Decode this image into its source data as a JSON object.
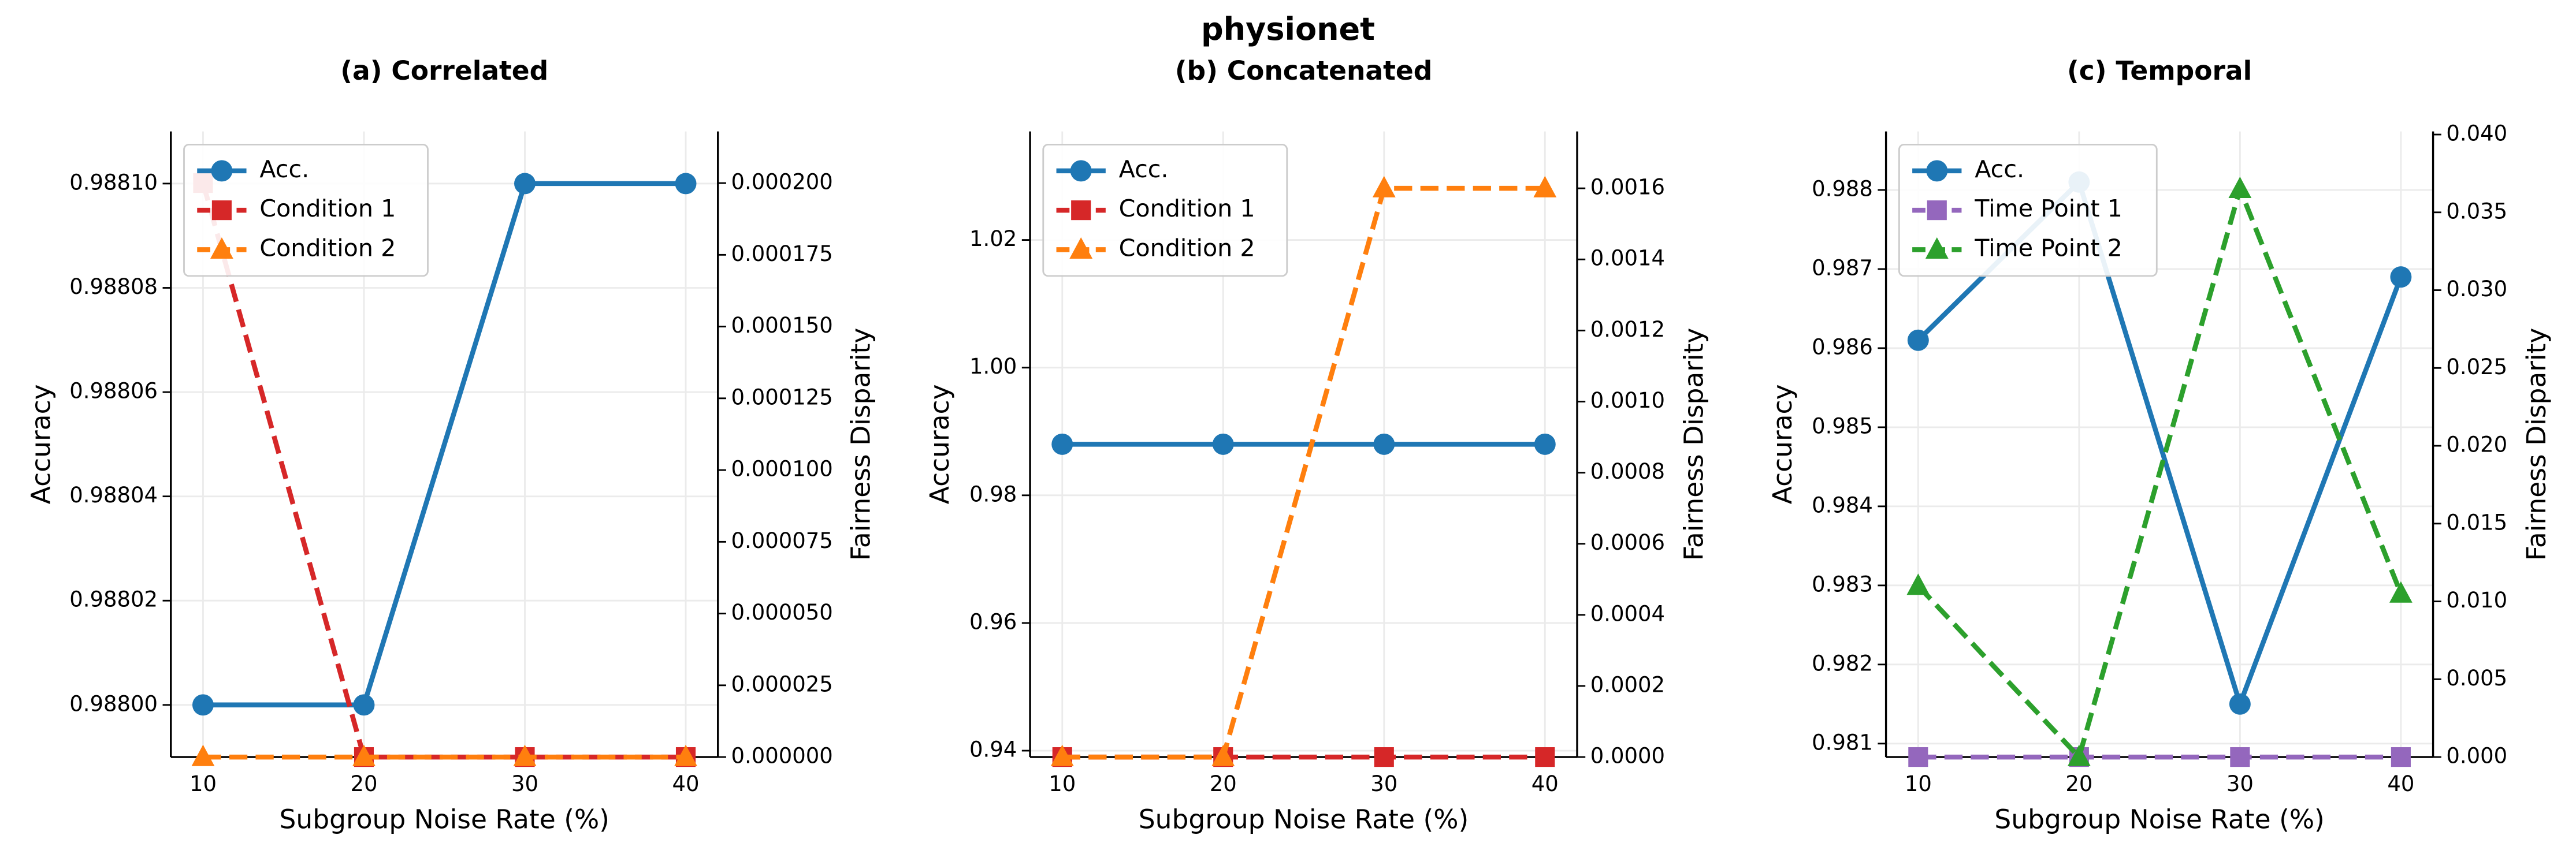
{
  "title": "physionet",
  "chart_data": [
    {
      "type": "line",
      "title": "(a) Correlated",
      "xlabel": "Subgroup Noise Rate (%)",
      "ylabel": "Accuracy",
      "y2label": "Fairness Disparity",
      "x": [
        10,
        20,
        30,
        40
      ],
      "xlim": [
        8,
        42
      ],
      "xticks": [
        10,
        20,
        30,
        40
      ],
      "ylim": [
        0.98799,
        0.98811
      ],
      "yticks": [
        {
          "value": 0.988,
          "label": "0.98800"
        },
        {
          "value": 0.98802,
          "label": "0.98802"
        },
        {
          "value": 0.98804,
          "label": "0.98804"
        },
        {
          "value": 0.98806,
          "label": "0.98806"
        },
        {
          "value": 0.98808,
          "label": "0.98808"
        },
        {
          "value": 0.9881,
          "label": "0.98810"
        }
      ],
      "y2lim": [
        0,
        0.000218
      ],
      "y2ticks": [
        {
          "value": 0,
          "label": "0.000000"
        },
        {
          "value": 2.5e-05,
          "label": "0.000025"
        },
        {
          "value": 5e-05,
          "label": "0.000050"
        },
        {
          "value": 7.5e-05,
          "label": "0.000075"
        },
        {
          "value": 0.0001,
          "label": "0.000100"
        },
        {
          "value": 0.000125,
          "label": "0.000125"
        },
        {
          "value": 0.00015,
          "label": "0.000150"
        },
        {
          "value": 0.000175,
          "label": "0.000175"
        },
        {
          "value": 0.0002,
          "label": "0.000200"
        }
      ],
      "grid": true,
      "legend": "upper left",
      "axis_color": "#1f77b4",
      "series": [
        {
          "name": "Acc.",
          "color": "#1f77b4",
          "marker": "circle",
          "linestyle": "solid",
          "values": [
            0.988,
            0.988,
            0.9881,
            0.9881
          ]
        },
        {
          "name": "Condition 1",
          "color": "#d62728",
          "marker": "square",
          "linestyle": "dashed",
          "axis": "y2",
          "values": [
            0.0002,
            0,
            0,
            0
          ]
        },
        {
          "name": "Condition 2",
          "color": "#ff7f0e",
          "marker": "triangle",
          "linestyle": "dashed",
          "axis": "y2",
          "values": [
            0,
            0,
            0,
            0
          ]
        }
      ]
    },
    {
      "type": "line",
      "title": "(b) Concatenated",
      "xlabel": "Subgroup Noise Rate (%)",
      "ylabel": "Accuracy",
      "y2label": "Fairness Disparity",
      "x": [
        10,
        20,
        30,
        40
      ],
      "xlim": [
        8,
        42
      ],
      "xticks": [
        10,
        20,
        30,
        40
      ],
      "ylim": [
        0.939,
        1.037
      ],
      "yticks": [
        0.94,
        0.96,
        0.98,
        {
          "value": 1,
          "label": "1.00"
        },
        1.02
      ],
      "y2lim": [
        0,
        0.00176
      ],
      "y2ticks": [
        {
          "value": 0,
          "label": "0.0000"
        },
        0.0002,
        0.0004,
        0.0006,
        0.0008,
        {
          "value": 0.001,
          "label": "0.0010"
        },
        0.0012,
        0.0014,
        0.0016
      ],
      "grid": true,
      "legend": "upper left",
      "axis_color": "#1f77b4",
      "series": [
        {
          "name": "Acc.",
          "color": "#1f77b4",
          "marker": "circle",
          "linestyle": "solid",
          "values": [
            0.988,
            0.988,
            0.988,
            0.988
          ]
        },
        {
          "name": "Condition 1",
          "color": "#d62728",
          "marker": "square",
          "linestyle": "dashed",
          "axis": "y2",
          "values": [
            0,
            0,
            0,
            0
          ]
        },
        {
          "name": "Condition 2",
          "color": "#ff7f0e",
          "marker": "triangle",
          "linestyle": "dashed",
          "axis": "y2",
          "values": [
            0,
            0,
            0.0016,
            0.0016
          ]
        }
      ]
    },
    {
      "type": "line",
      "title": "(c) Temporal",
      "xlabel": "Subgroup Noise Rate (%)",
      "ylabel": "Accuracy",
      "y2label": "Fairness Disparity",
      "x": [
        10,
        20,
        30,
        40
      ],
      "xlim": [
        8,
        42
      ],
      "xticks": [
        10,
        20,
        30,
        40
      ],
      "ylim": [
        0.98083,
        0.98874
      ],
      "yticks": [
        0.981,
        0.982,
        0.983,
        0.984,
        0.985,
        0.986,
        0.987,
        0.988
      ],
      "y2lim": [
        0,
        0.0402
      ],
      "y2ticks": [
        {
          "value": 0,
          "label": "0.000"
        },
        0.005,
        {
          "value": 0.01,
          "label": "0.010"
        },
        0.015,
        {
          "value": 0.02,
          "label": "0.020"
        },
        0.025,
        {
          "value": 0.03,
          "label": "0.030"
        },
        0.035,
        {
          "value": 0.04,
          "label": "0.040"
        }
      ],
      "grid": true,
      "legend": "upper left",
      "axis_color": "#1f77b4",
      "series": [
        {
          "name": "Acc.",
          "color": "#1f77b4",
          "marker": "circle",
          "linestyle": "solid",
          "values": [
            0.9861,
            0.9881,
            0.9815,
            0.9869
          ]
        },
        {
          "name": "Time Point 1",
          "color": "#9467bd",
          "marker": "square",
          "linestyle": "dashed",
          "axis": "y2",
          "values": [
            0,
            0,
            0,
            0
          ]
        },
        {
          "name": "Time Point 2",
          "color": "#2ca02c",
          "marker": "triangle",
          "linestyle": "dashed",
          "axis": "y2",
          "values": [
            0.011,
            0,
            0.0365,
            0.0105
          ]
        }
      ]
    }
  ]
}
